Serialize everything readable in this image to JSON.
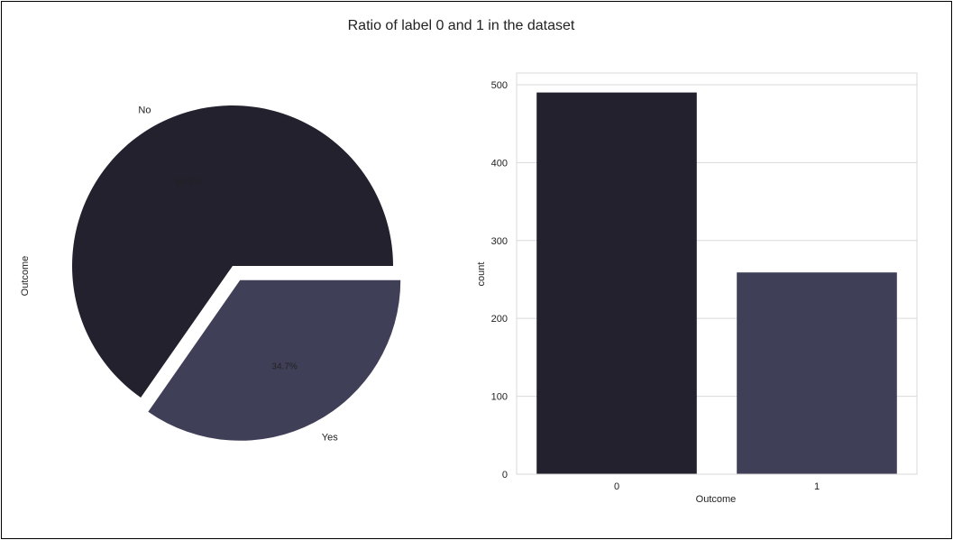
{
  "title": "Ratio of label 0 and 1 in the dataset",
  "chart_data": [
    {
      "type": "pie",
      "ylabel": "Outcome",
      "labels": [
        "No",
        "Yes"
      ],
      "values": [
        65.3,
        34.7
      ],
      "autopct": [
        "65.3%",
        "34.7%"
      ],
      "explode": [
        0,
        0.1
      ],
      "colors": [
        "#22212d",
        "#403f58"
      ]
    },
    {
      "type": "bar",
      "categories": [
        "0",
        "1"
      ],
      "values": [
        490,
        259
      ],
      "xlabel": "Outcome",
      "ylabel": "count",
      "ylim": [
        0,
        515
      ],
      "yticks": [
        0,
        100,
        200,
        300,
        400,
        500
      ],
      "grid": true,
      "colors": [
        "#22212d",
        "#403f58"
      ]
    }
  ]
}
